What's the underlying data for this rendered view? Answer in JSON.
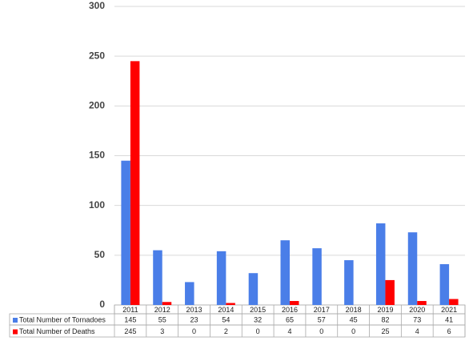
{
  "chart_data": {
    "type": "bar",
    "categories": [
      "2011",
      "2012",
      "2013",
      "2014",
      "2015",
      "2016",
      "2017",
      "2018",
      "2019",
      "2020",
      "2021"
    ],
    "series": [
      {
        "name": "Total Number of Tornadoes",
        "color": "#4a7ee8",
        "values": [
          145,
          55,
          23,
          54,
          32,
          65,
          57,
          45,
          82,
          73,
          41
        ]
      },
      {
        "name": "Total Number of Deaths",
        "color": "#ff0000",
        "values": [
          245,
          3,
          0,
          2,
          0,
          4,
          0,
          0,
          25,
          4,
          6
        ]
      }
    ],
    "ylim": [
      0,
      300
    ],
    "yticks": [
      0,
      50,
      100,
      150,
      200,
      250,
      300
    ],
    "grid": true
  }
}
